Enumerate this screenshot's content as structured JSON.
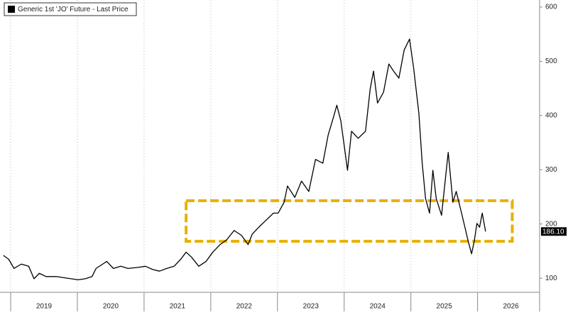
{
  "chart_data": {
    "type": "line",
    "series": [
      {
        "name": "Generic 1st 'JO' Future - Last Price",
        "color": "#000000",
        "x": [
          2018.89,
          2018.97,
          2019.05,
          2019.16,
          2019.27,
          2019.35,
          2019.43,
          2019.53,
          2019.69,
          2019.85,
          2020.01,
          2020.12,
          2020.22,
          2020.28,
          2020.38,
          2020.44,
          2020.54,
          2020.65,
          2020.76,
          2020.91,
          2021.02,
          2021.13,
          2021.23,
          2021.34,
          2021.45,
          2021.55,
          2021.63,
          2021.71,
          2021.82,
          2021.93,
          2022.03,
          2022.14,
          2022.24,
          2022.35,
          2022.46,
          2022.56,
          2022.62,
          2022.72,
          2022.83,
          2022.94,
          2023.01,
          2023.1,
          2023.15,
          2023.26,
          2023.36,
          2023.47,
          2023.57,
          2023.68,
          2023.76,
          2023.84,
          2023.89,
          2023.95,
          2024.0,
          2024.05,
          2024.11,
          2024.21,
          2024.32,
          2024.39,
          2024.44,
          2024.5,
          2024.59,
          2024.67,
          2024.74,
          2024.82,
          2024.9,
          2024.98,
          2025.04,
          2025.12,
          2025.17,
          2025.22,
          2025.28,
          2025.33,
          2025.38,
          2025.46,
          2025.52,
          2025.56,
          2025.63,
          2025.68,
          2025.76,
          2025.81,
          2025.86,
          2025.91,
          2025.95,
          2025.99,
          2026.03,
          2026.07,
          2026.12
        ],
        "values": [
          142,
          135,
          118,
          126,
          122,
          99,
          109,
          103,
          103,
          100,
          97,
          99,
          103,
          118,
          126,
          131,
          118,
          122,
          118,
          120,
          122,
          116,
          113,
          118,
          122,
          135,
          148,
          139,
          122,
          131,
          148,
          162,
          171,
          188,
          179,
          162,
          181,
          194,
          207,
          220,
          220,
          240,
          270,
          249,
          279,
          260,
          319,
          312,
          364,
          397,
          419,
          390,
          345,
          299,
          371,
          358,
          371,
          449,
          482,
          423,
          443,
          495,
          482,
          469,
          521,
          541,
          489,
          404,
          312,
          247,
          220,
          299,
          247,
          216,
          286,
          332,
          240,
          260,
          220,
          194,
          168,
          145,
          168,
          201,
          194,
          220,
          186.1
        ]
      }
    ],
    "xlim": [
      2018.84,
      2026.93
    ],
    "xticks": [
      {
        "value": 2019.5,
        "label": "2019"
      },
      {
        "value": 2020.5,
        "label": "2020"
      },
      {
        "value": 2021.5,
        "label": "2021"
      },
      {
        "value": 2022.5,
        "label": "2022"
      },
      {
        "value": 2023.5,
        "label": "2023"
      },
      {
        "value": 2024.5,
        "label": "2024"
      },
      {
        "value": 2025.5,
        "label": "2025"
      },
      {
        "value": 2026.5,
        "label": "2026"
      }
    ],
    "xgrid": [
      2019,
      2020,
      2021,
      2022,
      2023,
      2024,
      2025,
      2026
    ],
    "ylim": [
      74,
      613
    ],
    "yticks": [
      100,
      200,
      300,
      400,
      500,
      600
    ],
    "last_price": {
      "value": 186.1,
      "label": "186.10"
    },
    "highlight_box": {
      "x": [
        2021.63,
        2026.52
      ],
      "y": [
        168,
        243
      ],
      "color": "#e8b000"
    }
  }
}
